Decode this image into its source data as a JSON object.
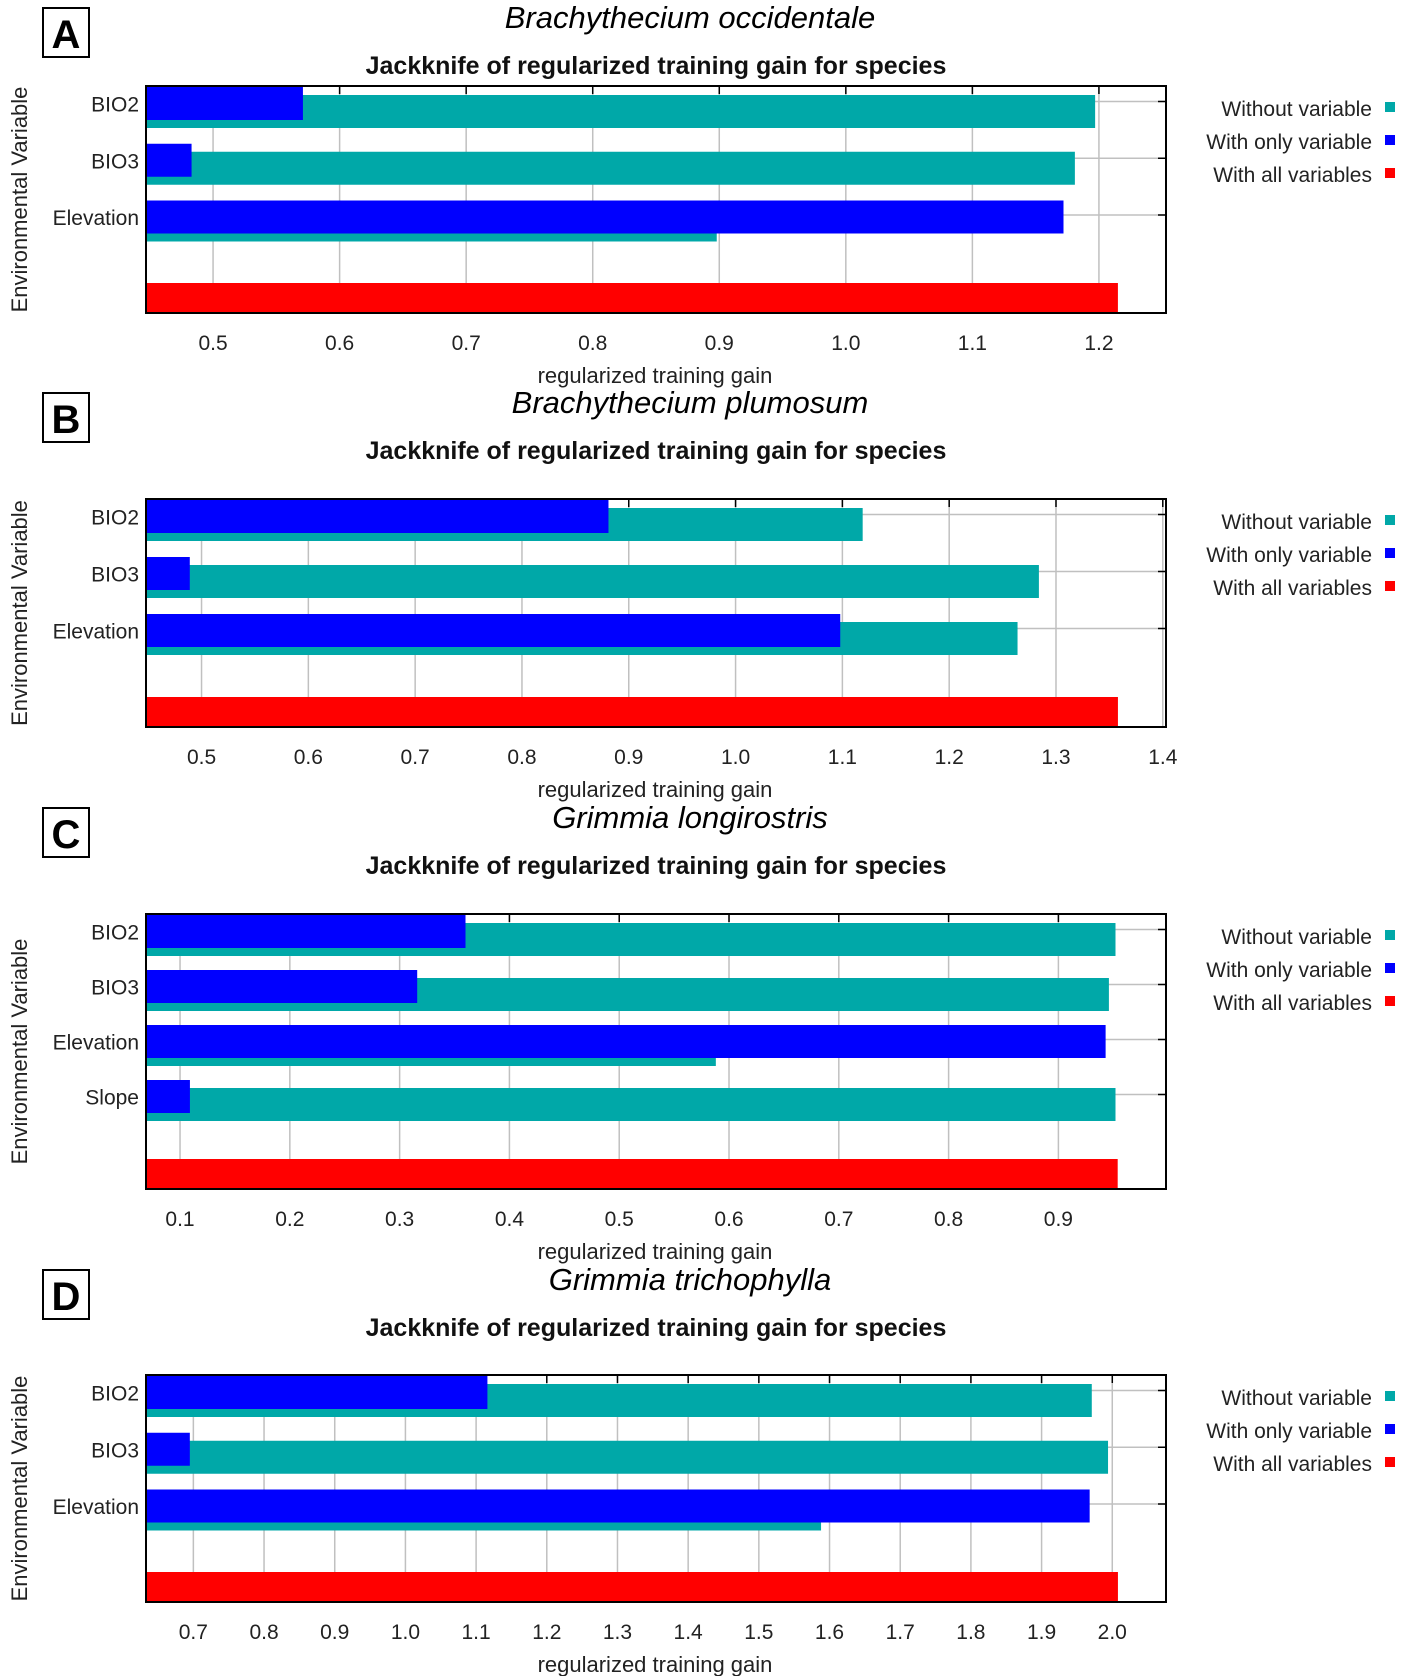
{
  "figure": {
    "legend": [
      {
        "label": "Without variable",
        "color": "#00A8A8",
        "key": "without"
      },
      {
        "label": "With only variable",
        "color": "#0000FF",
        "key": "only"
      },
      {
        "label": "With all variables",
        "color": "#FF0000",
        "key": "all"
      }
    ],
    "grid_color": "#C0C0C0"
  },
  "chart_data": [
    {
      "panel": "A",
      "type": "bar",
      "orientation": "horizontal",
      "species": "Brachythecium occidentale",
      "title": "Jackknife of regularized training gain for species",
      "xlabel": "regularized training gain",
      "ylabel": "Environmental Variable",
      "xlim": [
        0.447,
        1.253
      ],
      "xticks": [
        "0.5",
        "0.6",
        "0.7",
        "0.8",
        "0.9",
        "1.0",
        "1.1",
        "1.2"
      ],
      "grid": true,
      "legend_position": "right",
      "categories": [
        "BIO2",
        "BIO3",
        "Elevation"
      ],
      "series": [
        {
          "name": "Without variable",
          "values": [
            1.197,
            1.181,
            0.898
          ]
        },
        {
          "name": "With only variable",
          "values": [
            0.571,
            0.483,
            1.172
          ]
        }
      ],
      "all_variables": 1.215
    },
    {
      "panel": "B",
      "type": "bar",
      "orientation": "horizontal",
      "species": "Brachythecium plumosum",
      "title": "Jackknife of regularized training gain for species",
      "xlabel": "regularized training gain",
      "ylabel": "Environmental Variable",
      "xlim": [
        0.448,
        1.403
      ],
      "xticks": [
        "0.5",
        "0.6",
        "0.7",
        "0.8",
        "0.9",
        "1.0",
        "1.1",
        "1.2",
        "1.3",
        "1.4"
      ],
      "grid": true,
      "legend_position": "right",
      "categories": [
        "BIO2",
        "BIO3",
        "Elevation"
      ],
      "series": [
        {
          "name": "Without variable",
          "values": [
            1.119,
            1.284,
            1.264
          ]
        },
        {
          "name": "With only variable",
          "values": [
            0.881,
            0.489,
            1.098
          ]
        }
      ],
      "all_variables": 1.358
    },
    {
      "panel": "C",
      "type": "bar",
      "orientation": "horizontal",
      "species": "Grimmia longirostris",
      "title": "Jackknife of regularized training gain for species",
      "xlabel": "regularized training gain",
      "ylabel": "Environmental Variable",
      "xlim": [
        0.069,
        0.998
      ],
      "xticks": [
        "0.1",
        "0.2",
        "0.3",
        "0.4",
        "0.5",
        "0.6",
        "0.7",
        "0.8",
        "0.9"
      ],
      "grid": true,
      "legend_position": "right",
      "categories": [
        "BIO2",
        "BIO3",
        "Elevation",
        "Slope"
      ],
      "series": [
        {
          "name": "Without variable",
          "values": [
            0.952,
            0.946,
            0.588,
            0.952
          ]
        },
        {
          "name": "With only variable",
          "values": [
            0.36,
            0.316,
            0.943,
            0.109
          ]
        }
      ],
      "all_variables": 0.954
    },
    {
      "panel": "D",
      "type": "bar",
      "orientation": "horizontal",
      "species": "Grimmia trichophylla",
      "title": "Jackknife of regularized training gain for species",
      "xlabel": "regularized training gain",
      "ylabel": "Environmental Variable",
      "xlim": [
        0.633,
        2.076
      ],
      "xticks": [
        "0.7",
        "0.8",
        "0.9",
        "1.0",
        "1.1",
        "1.2",
        "1.3",
        "1.4",
        "1.5",
        "1.6",
        "1.7",
        "1.8",
        "1.9",
        "2.0"
      ],
      "grid": true,
      "legend_position": "right",
      "categories": [
        "BIO2",
        "BIO3",
        "Elevation"
      ],
      "series": [
        {
          "name": "Without variable",
          "values": [
            1.971,
            1.994,
            1.588
          ]
        },
        {
          "name": "With only variable",
          "values": [
            1.116,
            0.695,
            1.968
          ]
        }
      ],
      "all_variables": 2.008
    }
  ]
}
